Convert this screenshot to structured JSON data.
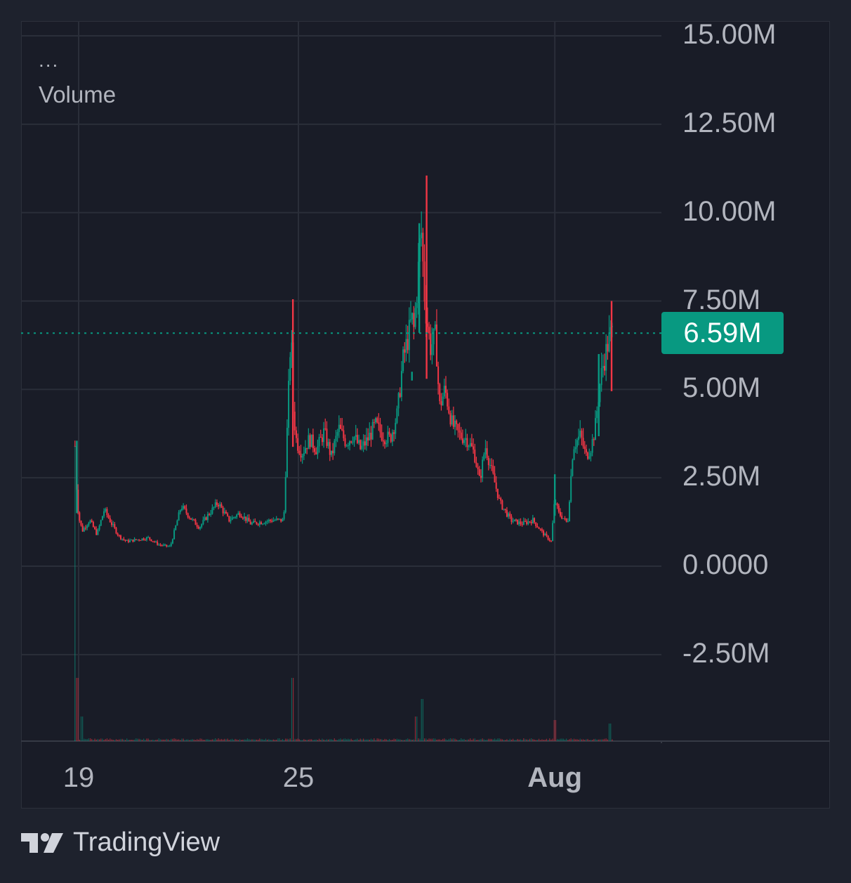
{
  "legend": {
    "menu": "...",
    "title": "Volume"
  },
  "current_value_label": "6.59M",
  "colors": {
    "up": "#089981",
    "down": "#f23645",
    "grid": "#2a2e39",
    "background": "#191c27",
    "text": "#b2b5be"
  },
  "brand": {
    "name": "TradingView",
    "icon": "tradingview-logo-icon"
  },
  "chart_data": {
    "type": "candlestick",
    "title": "Volume",
    "xlabel": "",
    "ylabel": "",
    "ylim": [
      -4.9,
      15.4
    ],
    "yticks": [
      "15.00M",
      "12.50M",
      "10.00M",
      "7.50M",
      "5.00M",
      "2.50M",
      "0.0000",
      "-2.50M"
    ],
    "ytick_values": [
      15,
      12.5,
      10,
      7.5,
      5,
      2.5,
      0,
      -2.5
    ],
    "xticks": [
      {
        "label": "19",
        "day": 19,
        "bold": false
      },
      {
        "label": "25",
        "day": 25,
        "bold": false
      },
      {
        "label": "Aug",
        "day": 32,
        "bold": true
      }
    ],
    "x_range_days": [
      17.8,
      35.5
    ],
    "unit": "M",
    "last_value": 6.59,
    "grid": true,
    "series": [
      {
        "name": "Volume",
        "type": "line",
        "x": [
          18.9,
          18.95,
          19.0,
          19.1,
          19.3,
          19.5,
          19.7,
          19.9,
          20.1,
          20.3,
          20.6,
          20.9,
          21.2,
          21.5,
          21.8,
          22.1,
          22.3,
          22.5,
          22.8,
          23.1,
          23.4,
          23.7,
          24.0,
          24.3,
          24.6,
          24.8,
          24.85,
          24.95,
          25.1,
          25.3,
          25.5,
          25.7,
          25.9,
          26.1,
          26.3,
          26.5,
          26.7,
          26.9,
          27.1,
          27.3,
          27.5,
          27.7,
          27.85,
          28.0,
          28.1,
          28.15,
          28.25,
          28.35,
          28.45,
          28.6,
          28.75,
          28.85,
          29.0,
          29.2,
          29.4,
          29.6,
          29.8,
          29.95,
          30.1,
          30.3,
          30.5,
          30.8,
          31.1,
          31.4,
          31.7,
          31.9,
          32.0,
          32.1,
          32.2,
          32.35,
          32.5,
          32.7,
          32.85,
          33.0,
          33.1,
          33.2,
          33.3,
          33.45,
          33.55,
          33.6
        ],
        "y": [
          3.4,
          2.0,
          1.4,
          1.0,
          1.3,
          0.9,
          1.6,
          1.2,
          0.85,
          0.7,
          0.75,
          0.8,
          0.6,
          0.55,
          1.7,
          1.3,
          1.1,
          1.4,
          1.8,
          1.3,
          1.5,
          1.2,
          1.25,
          1.3,
          1.3,
          6.8,
          4.5,
          3.5,
          3.2,
          3.6,
          3.3,
          3.8,
          3.1,
          3.9,
          3.5,
          3.7,
          3.3,
          3.6,
          4.0,
          3.7,
          3.6,
          4.3,
          5.8,
          6.5,
          7.0,
          6.7,
          8.0,
          9.6,
          7.5,
          6.2,
          6.5,
          4.5,
          5.0,
          4.0,
          3.7,
          3.6,
          3.2,
          2.4,
          3.4,
          2.6,
          1.8,
          1.3,
          1.2,
          1.3,
          0.9,
          0.7,
          1.9,
          1.5,
          1.4,
          1.2,
          3.4,
          3.7,
          3.1,
          3.4,
          3.9,
          4.9,
          5.6,
          6.3,
          6.6,
          6.59
        ]
      },
      {
        "name": "Volume spikes",
        "type": "highs",
        "x": [
          18.95,
          24.85,
          28.1,
          28.3,
          28.5,
          32.0,
          33.2,
          33.55
        ],
        "y": [
          3.55,
          7.55,
          5.5,
          9.7,
          11.05,
          2.6,
          6.0,
          7.5
        ]
      }
    ],
    "bottom_histogram": {
      "x": [
        18.95,
        19.1,
        24.85,
        28.2,
        28.4,
        32.0,
        33.5
      ],
      "y": [
        0.9,
        0.35,
        0.9,
        0.35,
        0.6,
        0.3,
        0.25
      ]
    }
  }
}
